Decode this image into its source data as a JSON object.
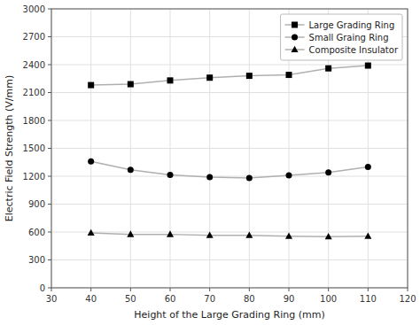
{
  "chart_data": {
    "type": "line",
    "x": [
      40,
      50,
      60,
      70,
      80,
      90,
      100,
      110
    ],
    "series": [
      {
        "name": "Large Grading Ring",
        "color": "#b0b0b0",
        "marker": "square",
        "values": [
          2180,
          2190,
          2230,
          2260,
          2280,
          2290,
          2360,
          2390
        ]
      },
      {
        "name": "Small Graing Ring",
        "color": "#b0b0b0",
        "marker": "circle",
        "values": [
          1360,
          1270,
          1215,
          1190,
          1180,
          1210,
          1240,
          1300
        ]
      },
      {
        "name": "Composite Insulator",
        "color": "#b0b0b0",
        "marker": "triangle",
        "values": [
          590,
          575,
          575,
          565,
          565,
          555,
          550,
          555
        ]
      }
    ],
    "xlabel": "Height of the Large Grading Ring (mm)",
    "ylabel": "Electric Field Strength (V/mm)",
    "xlim": [
      30,
      120
    ],
    "ylim": [
      0,
      3000
    ],
    "xticks": [
      30,
      40,
      50,
      60,
      70,
      80,
      90,
      100,
      110,
      120
    ],
    "yticks": [
      0,
      300,
      600,
      900,
      1200,
      1500,
      1800,
      2100,
      2400,
      2700,
      3000
    ],
    "grid": true,
    "legend": "upper right"
  }
}
